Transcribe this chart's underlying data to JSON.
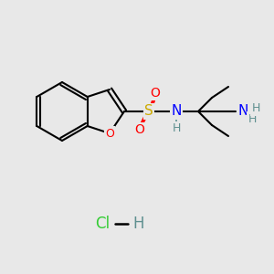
{
  "background_color": "#e8e8e8",
  "bond_color": "#000000",
  "atom_colors": {
    "O": "#ff0000",
    "N": "#0000ff",
    "S": "#ccaa00",
    "H": "#5f9090",
    "Cl": "#33cc33",
    "C": "#000000"
  },
  "figsize": [
    3.0,
    3.0
  ],
  "dpi": 100
}
